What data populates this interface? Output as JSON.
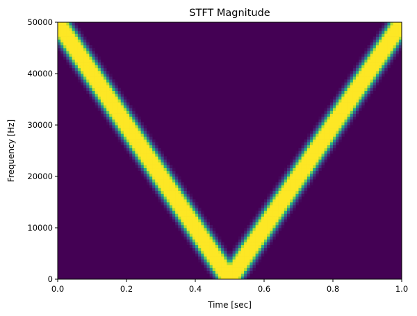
{
  "chart_data": {
    "type": "heatmap",
    "title": "STFT Magnitude",
    "xlabel": "Time [sec]",
    "ylabel": "Frequency [Hz]",
    "xlim": [
      0,
      1
    ],
    "ylim": [
      0,
      50000
    ],
    "xticks": [
      0.0,
      0.2,
      0.4,
      0.6,
      0.8,
      1.0
    ],
    "xtick_labels": [
      "0.0",
      "0.2",
      "0.4",
      "0.6",
      "0.8",
      "1.0"
    ],
    "yticks": [
      0,
      10000,
      20000,
      30000,
      40000,
      50000
    ],
    "ytick_labels": [
      "0",
      "10000",
      "20000",
      "30000",
      "40000",
      "50000"
    ],
    "colormap": "viridis",
    "background_color": "#440154",
    "band_color": "#fde725",
    "grid": false,
    "series": [
      {
        "x": [
          0.0,
          0.1,
          0.2,
          0.3,
          0.4,
          0.5,
          0.6,
          0.7,
          0.8,
          0.9,
          1.0
        ],
        "y": [
          50000,
          40000,
          30000,
          20000,
          10000,
          0,
          10000,
          20000,
          30000,
          40000,
          50000
        ]
      }
    ]
  }
}
